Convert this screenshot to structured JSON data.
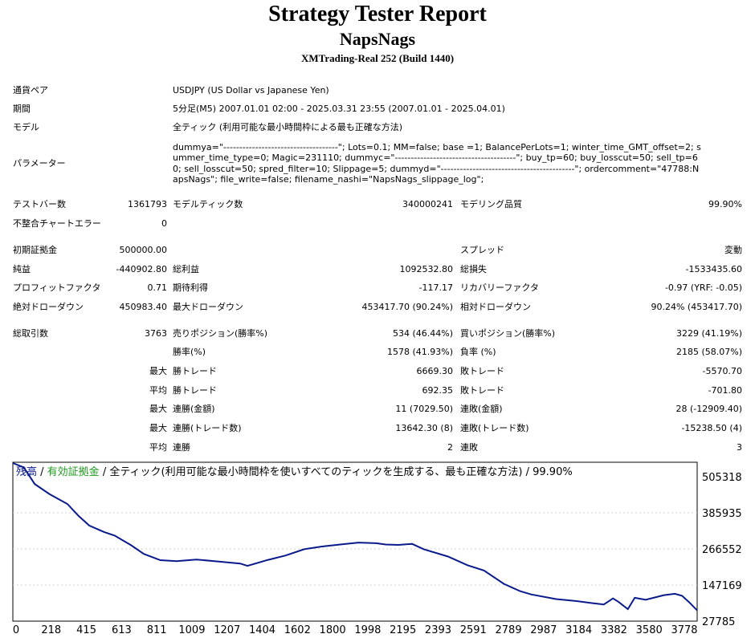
{
  "header": {
    "title": "Strategy Tester Report",
    "ea_name": "NapsNags",
    "server": "XMTrading-Real 252 (Build 1440)"
  },
  "info": {
    "symbol_label": "通貨ペア",
    "symbol_value": "USDJPY (US Dollar vs Japanese Yen)",
    "period_label": "期間",
    "period_value": "5分足(M5) 2007.01.01 02:00 - 2025.03.31 23:55 (2007.01.01 - 2025.04.01)",
    "model_label": "モデル",
    "model_value": "全ティック (利用可能な最小時間枠による最も正確な方法)",
    "params_label": "パラメーター",
    "params_value": "dummya=\"------------------------------------\"; Lots=0.1; MM=false; base =1; BalancePerLots=1; winter_time_GMT_offset=2; summer_time_type=0; Magic=231110; dummyc=\"--------------------------------------\"; buy_tp=60; buy_losscut=50; sell_tp=60; sell_losscut=50; spred_filter=10; Slippage=5; dummyd=\"------------------------------------------\"; ordercomment=\"47788:NapsNags\"; file_write=false; filename_nashi=\"NapsNags_slippage_log\";"
  },
  "stats": {
    "bars_label": "テストバー数",
    "bars_value": "1361793",
    "ticks_label": "モデルティック数",
    "ticks_value": "340000241",
    "quality_label": "モデリング品質",
    "quality_value": "99.90%",
    "mismatch_label": "不整合チャートエラー",
    "mismatch_value": "0",
    "deposit_label": "初期証拠金",
    "deposit_value": "500000.00",
    "spread_label": "スプレッド",
    "spread_value": "変動",
    "net_label": "純益",
    "net_value": "-440902.80",
    "gross_profit_label": "総利益",
    "gross_profit_value": "1092532.80",
    "gross_loss_label": "総損失",
    "gross_loss_value": "-1533435.60",
    "pf_label": "プロフィットファクタ",
    "pf_value": "0.71",
    "payoff_label": "期待利得",
    "payoff_value": "-117.17",
    "recovery_label": "リカバリーファクタ",
    "recovery_value": "-0.97 (YRF: -0.05)",
    "abs_dd_label": "絶対ドローダウン",
    "abs_dd_value": "450983.40",
    "max_dd_label": "最大ドローダウン",
    "max_dd_value": "453417.70 (90.24%)",
    "rel_dd_label": "相対ドローダウン",
    "rel_dd_value": "90.24% (453417.70)",
    "trades_label": "総取引数",
    "trades_value": "3763",
    "short_label": "売りポジション(勝率%)",
    "short_value": "534 (46.44%)",
    "long_label": "買いポジション(勝率%)",
    "long_value": "3229 (41.19%)",
    "winrate_label": "勝率(%)",
    "winrate_value": "1578 (41.93%)",
    "lossrate_label": "負率 (%)",
    "lossrate_value": "2185 (58.07%)",
    "max_label": "最大",
    "avg_label": "平均",
    "largest_win_label": "勝トレード",
    "largest_win_value": "6669.30",
    "largest_loss_label": "敗トレード",
    "largest_loss_value": "-5570.70",
    "avg_win_label": "勝トレード",
    "avg_win_value": "692.35",
    "avg_loss_label": "敗トレード",
    "avg_loss_value": "-701.80",
    "max_consec_wins_money_label": "連勝(金額)",
    "max_consec_wins_money_value": "11 (7029.50)",
    "max_consec_losses_money_label": "連敗(金額)",
    "max_consec_losses_money_value": "28 (-12909.40)",
    "max_consec_profit_label": "連勝(トレード数)",
    "max_consec_profit_value": "13642.30 (8)",
    "max_consec_loss_label": "連敗(トレード数)",
    "max_consec_loss_value": "-15238.50 (4)",
    "avg_consec_wins_label": "連勝",
    "avg_consec_wins_value": "2",
    "avg_consec_losses_label": "連敗",
    "avg_consec_losses_value": "3"
  },
  "chart_legend": {
    "balance": "残高",
    "sep1": " / ",
    "equity": "有効証拠金",
    "rest": " / 全ティック(利用可能な最小時間枠を使いすべてのティックを生成する、最も正確な方法) / 99.90%"
  },
  "colors": {
    "balance": "#0a1a8c",
    "equity": "#1f9a1f",
    "grid": "#d0d0d0"
  },
  "chart_data": {
    "type": "line",
    "y_ticks": [
      "505318",
      "385935",
      "266552",
      "147169",
      "27785"
    ],
    "x_ticks": [
      "0",
      "218",
      "415",
      "613",
      "811",
      "1009",
      "1207",
      "1404",
      "1602",
      "1800",
      "1998",
      "2195",
      "2393",
      "2591",
      "2789",
      "2987",
      "3184",
      "3382",
      "3580",
      "3778"
    ],
    "ylim": [
      27785,
      505318
    ],
    "xlim": [
      0,
      3763
    ],
    "series": [
      {
        "name": "残高",
        "x": [
          0,
          60,
          120,
          200,
          300,
          360,
          420,
          500,
          560,
          650,
          720,
          811,
          900,
          1009,
          1150,
          1250,
          1290,
          1404,
          1500,
          1602,
          1700,
          1800,
          1900,
          1998,
          2050,
          2120,
          2195,
          2260,
          2393,
          2500,
          2591,
          2700,
          2789,
          2850,
          2987,
          3100,
          3184,
          3250,
          3300,
          3330,
          3382,
          3420,
          3480,
          3580,
          3640,
          3680,
          3720,
          3763
        ],
        "y": [
          503000,
          490000,
          440000,
          410000,
          380000,
          345000,
          315000,
          296000,
          285000,
          256000,
          230000,
          211000,
          208000,
          213000,
          206000,
          201000,
          194000,
          212000,
          225000,
          244000,
          252000,
          258000,
          264000,
          262000,
          258000,
          257000,
          260000,
          244000,
          222000,
          196000,
          180000,
          140000,
          118000,
          108000,
          94000,
          88000,
          82000,
          78000,
          96000,
          86000,
          64000,
          98000,
          92000,
          106000,
          110000,
          104000,
          84000,
          60000
        ]
      }
    ]
  }
}
